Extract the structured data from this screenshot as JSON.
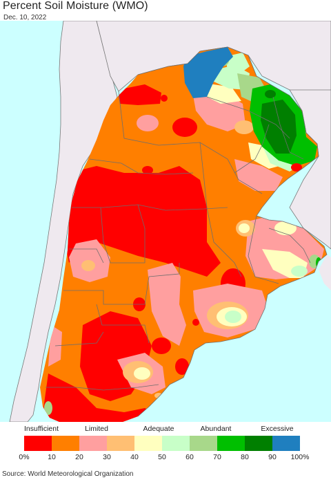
{
  "title": "Percent Soil Moisture (WMO)",
  "date": "Dec. 10, 2022",
  "legend": {
    "category_labels": [
      "Insufficient",
      "Limited",
      "Adequate",
      "Abundant",
      "Excessive"
    ],
    "tick_labels": [
      "0%",
      "10",
      "20",
      "30",
      "40",
      "50",
      "60",
      "70",
      "80",
      "90",
      "100%"
    ],
    "colors": [
      "#ff0000",
      "#ff7f00",
      "#ff9f9f",
      "#ffbf73",
      "#ffffbf",
      "#c8ffc8",
      "#a8d88a",
      "#00bf00",
      "#007f00",
      "#1f7fbf"
    ]
  },
  "map_colors": {
    "ocean": "#ccffff",
    "outside_land": "#efe9ef",
    "border": "#666666"
  },
  "source": "Source: World Meteorological Organization"
}
